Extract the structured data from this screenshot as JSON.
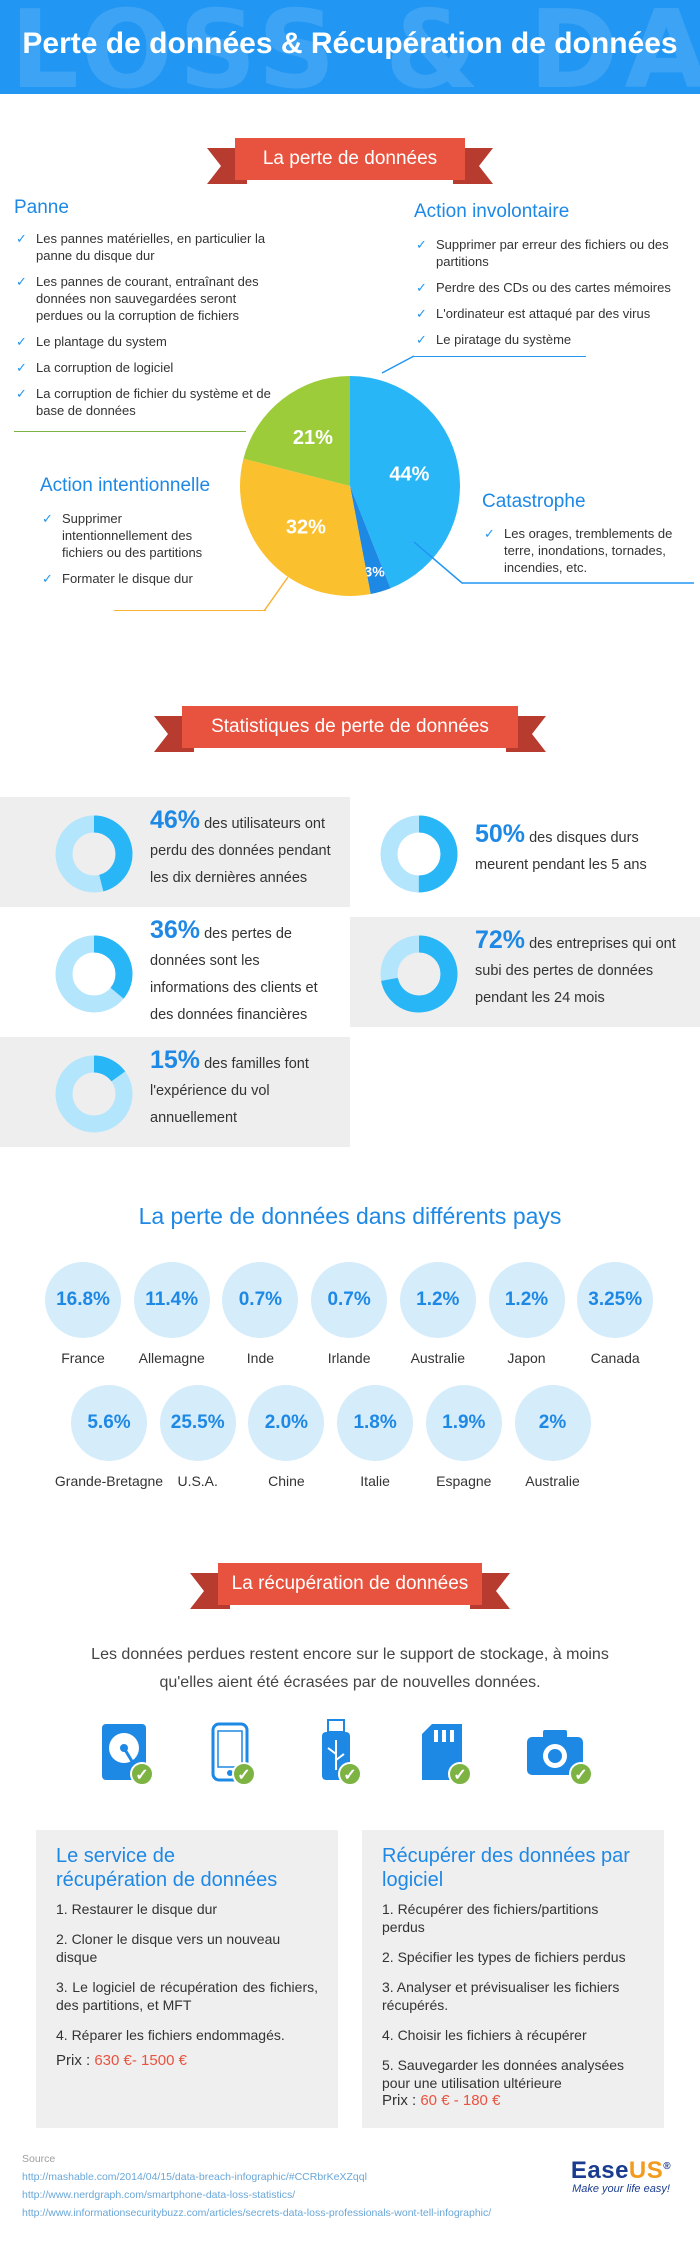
{
  "header": {
    "bg_text": "LOSS & DATA",
    "title": "Perte de données & Récupération de données"
  },
  "loss": {
    "ribbon": "La perte de données",
    "panne": {
      "title": "Panne",
      "items": [
        "Les pannes matérielles, en particulier la panne du disque dur",
        "Les pannes de courant, entraînant des données non sauvegardées seront perdues ou la corruption de fichiers",
        "Le plantage du system",
        "La corruption de logiciel",
        "La corruption de fichier du système et de base de données"
      ]
    },
    "involontaire": {
      "title": "Action involontaire",
      "items": [
        "Supprimer par erreur des fichiers ou des partitions",
        "Perdre des CDs ou des cartes mémoires",
        "L'ordinateur est attaqué par des virus",
        "Le piratage du système"
      ]
    },
    "intentionnelle": {
      "title": "Action intentionnelle",
      "items": [
        "Supprimer intentionnellement des fichiers ou des partitions",
        "Formater le disque dur"
      ]
    },
    "catastrophe": {
      "title": "Catastrophe",
      "items": [
        "Les orages, tremblements de terre, inondations, tornades, incendies, etc."
      ]
    },
    "check_icon": "check-icon"
  },
  "chart_data": {
    "type": "pie",
    "slices": [
      {
        "label": "44%",
        "value": 44,
        "color": "#29b6f6"
      },
      {
        "label": "3%",
        "value": 3,
        "color": "#1e88e5"
      },
      {
        "label": "32%",
        "value": 32,
        "color": "#fbc02d"
      },
      {
        "label": "21%",
        "value": 21,
        "color": "#9ccc3a"
      }
    ]
  },
  "stats": {
    "ribbon": "Statistiques de perte de données",
    "items": [
      {
        "pct": "46%",
        "value": 46,
        "lines": [
          "des utilisateurs ont",
          "perdu des données pendant",
          "les dix dernières années"
        ]
      },
      {
        "pct": "50%",
        "value": 50,
        "lines": [
          "des disques durs",
          "meurent pendant les 5 ans"
        ]
      },
      {
        "pct": "36%",
        "value": 36,
        "lines": [
          "des pertes de",
          "données sont les",
          "informations des clients et",
          "des données financières"
        ]
      },
      {
        "pct": "72%",
        "value": 72,
        "lines": [
          "des entreprises qui ont",
          "subi des pertes de données",
          "pendant les 24 mois"
        ]
      },
      {
        "pct": "15%",
        "value": 15,
        "lines": [
          "des familles font",
          "l'expérience du vol",
          "annuellement"
        ]
      }
    ],
    "donut_colors": {
      "fill": "#29b6f6",
      "track": "#b3e5fc"
    }
  },
  "countries": {
    "title": "La perte de données dans différents pays",
    "row1": [
      {
        "value": "16.8%",
        "name": "France"
      },
      {
        "value": "11.4%",
        "name": "Allemagne"
      },
      {
        "value": "0.7%",
        "name": "Inde"
      },
      {
        "value": "0.7%",
        "name": "Irlande"
      },
      {
        "value": "1.2%",
        "name": "Australie"
      },
      {
        "value": "1.2%",
        "name": "Japon"
      },
      {
        "value": "3.25%",
        "name": "Canada"
      }
    ],
    "row2": [
      {
        "value": "5.6%",
        "name": "Grande-Bretagne"
      },
      {
        "value": "25.5%",
        "name": "U.S.A."
      },
      {
        "value": "2.0%",
        "name": "Chine"
      },
      {
        "value": "1.8%",
        "name": "Italie"
      },
      {
        "value": "1.9%",
        "name": "Espagne"
      },
      {
        "value": "2%",
        "name": "Australie"
      }
    ]
  },
  "recovery": {
    "ribbon": "La récupération de données",
    "intro_line1": "Les données perdues restent  encore  sur  le  support  de  stockage, à moins",
    "intro_line2": "qu'elles aient été écrasées par de nouvelles données.",
    "devices": [
      "hard-drive-icon",
      "phone-icon",
      "usb-drive-icon",
      "sd-card-icon",
      "camera-icon"
    ],
    "badge": "✓",
    "service": {
      "title_l1": "Le service de",
      "title_l2": "récupération de données",
      "items": [
        "1. Restaurer le disque dur",
        "2. Cloner le disque vers un nouveau disque",
        "3. Le logiciel de récupération des fichiers, des partitions, et MFT",
        "4. Réparer les fichiers endommagés."
      ],
      "price_label": "Prix :",
      "price": "630 €- 1500 €"
    },
    "software": {
      "title_l1": "Récupérer des données par",
      "title_l2": "logiciel",
      "items": [
        "1. Récupérer des fichiers/partitions perdus",
        "2. Spécifier les types de fichiers perdus",
        "3. Analyser et prévisualiser les fichiers récupérés.",
        "4. Choisir les fichiers à récupérer",
        "5. Sauvegarder les données analysées pour une utilisation ultérieure"
      ],
      "price_label": "Prix :",
      "price": "60 € - 180 €"
    }
  },
  "source": {
    "label": "Source",
    "links": [
      "http://mashable.com/2014/04/15/data-breach-infographic/#CCRbrKeXZqql",
      "http://www.nerdgraph.com/smartphone-data-loss-statistics/",
      "http://www.informationsecuritybuzz.com/articles/secrets-data-loss-professionals-wont-tell-infographic/"
    ]
  },
  "logo": {
    "name_a": "Ease",
    "name_b": "US",
    "reg": "®",
    "tagline": "Make your life easy!"
  }
}
